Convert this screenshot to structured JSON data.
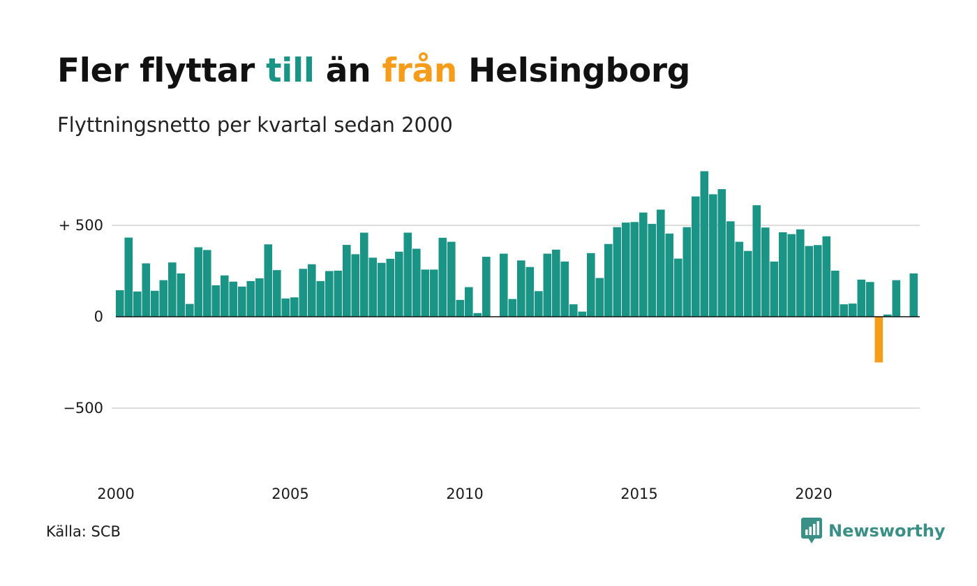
{
  "header": {
    "title_parts": [
      "Fler flyttar ",
      "till",
      " än ",
      "från",
      " Helsingborg"
    ],
    "subtitle": "Flyttningsnetto per kvartal sedan 2000"
  },
  "footer": {
    "source": "Källa: SCB",
    "brand": "Newsworthy",
    "brand_icon": "chart-speech-bubble-icon"
  },
  "colors": {
    "positive": "#1a9585",
    "negative": "#f59c1a",
    "title_positive": "#1a9585",
    "title_negative": "#f59c1a",
    "grid": "#dddddd",
    "brand": "#3a8f86"
  },
  "chart_data": {
    "type": "bar",
    "x_start": "2000 Q1",
    "xticks": [
      2000,
      2005,
      2010,
      2015,
      2020
    ],
    "yticks": [
      {
        "value": 500,
        "label": "+ 500"
      },
      {
        "value": 0,
        "label": "0"
      },
      {
        "value": -500,
        "label": "−500"
      }
    ],
    "ylim": [
      -850,
      820
    ],
    "grid": true,
    "values": [
      145,
      433,
      138,
      292,
      142,
      200,
      297,
      237,
      70,
      380,
      365,
      172,
      226,
      192,
      165,
      195,
      210,
      396,
      255,
      100,
      106,
      262,
      287,
      195,
      250,
      252,
      393,
      342,
      460,
      323,
      295,
      317,
      356,
      460,
      372,
      258,
      258,
      432,
      410,
      92,
      162,
      20,
      328,
      0,
      345,
      97,
      308,
      272,
      140,
      345,
      367,
      302,
      68,
      28,
      348,
      212,
      398,
      490,
      515,
      518,
      570,
      508,
      586,
      455,
      318,
      490,
      658,
      796,
      670,
      698,
      522,
      410,
      360,
      610,
      488,
      302,
      462,
      452,
      478,
      387,
      392,
      440,
      252,
      68,
      72,
      203,
      190,
      -250,
      12,
      200,
      0,
      237
    ]
  }
}
